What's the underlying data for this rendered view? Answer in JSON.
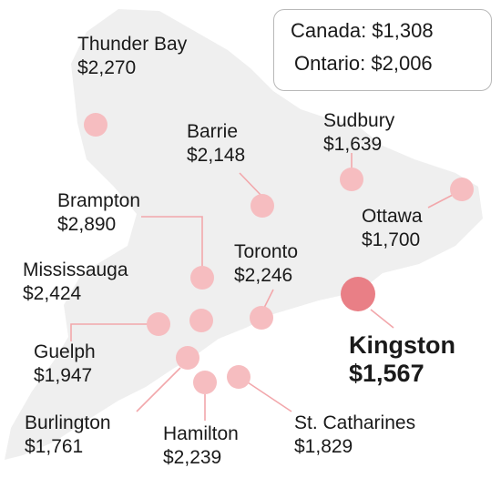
{
  "summary": {
    "canada": "Canada: $1,308",
    "ontario": "Ontario: $2,006"
  },
  "colors": {
    "land": "#efefef",
    "dot": "#f6bdc0",
    "dot_highlight": "#e97f86",
    "leader": "#f2a7ab"
  },
  "cities": [
    {
      "id": "thunder-bay",
      "name": "Thunder Bay",
      "value": "$2,270"
    },
    {
      "id": "barrie",
      "name": "Barrie",
      "value": "$2,148"
    },
    {
      "id": "sudbury",
      "name": "Sudbury",
      "value": "$1,639"
    },
    {
      "id": "brampton",
      "name": "Brampton",
      "value": "$2,890"
    },
    {
      "id": "ottawa",
      "name": "Ottawa",
      "value": "$1,700"
    },
    {
      "id": "mississauga",
      "name": "Mississauga",
      "value": "$2,424"
    },
    {
      "id": "toronto",
      "name": "Toronto",
      "value": "$2,246"
    },
    {
      "id": "kingston",
      "name": "Kingston",
      "value": "$1,567",
      "highlight": true
    },
    {
      "id": "guelph",
      "name": "Guelph",
      "value": "$1,947"
    },
    {
      "id": "burlington",
      "name": "Burlington",
      "value": "$1,761"
    },
    {
      "id": "hamilton",
      "name": "Hamilton",
      "value": "$2,239"
    },
    {
      "id": "st-catharines",
      "name": "St. Catharines",
      "value": "$1,829"
    }
  ]
}
